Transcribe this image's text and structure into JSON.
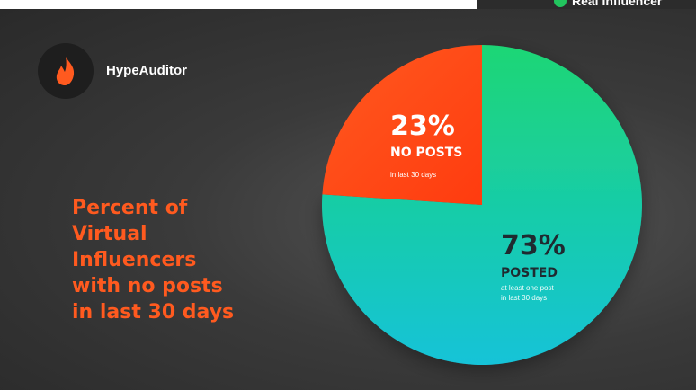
{
  "top_strip": {
    "legend_text": "Real Influencer",
    "dot_color": "#22c55e"
  },
  "brand": {
    "name": "HypeAuditor",
    "accent": "#ff5a1f"
  },
  "headline": "Percent of\nVirtual\nInfluencers\nwith no posts\nin last 30 days",
  "chart_data": {
    "type": "pie",
    "title": "Percent of Virtual Influencers with no posts in last 30 days",
    "slices": [
      {
        "value": 23,
        "label": "23%",
        "category": "NO POSTS",
        "note": "in last 30 days",
        "color_start": "#ff5a1f",
        "color_end": "#ff3b0f"
      },
      {
        "value": 73,
        "label": "73%",
        "category": "POSTED",
        "note": "at least one post in last 30 days",
        "color_start": "#1fd675",
        "color_end": "#12c3d8"
      }
    ]
  }
}
